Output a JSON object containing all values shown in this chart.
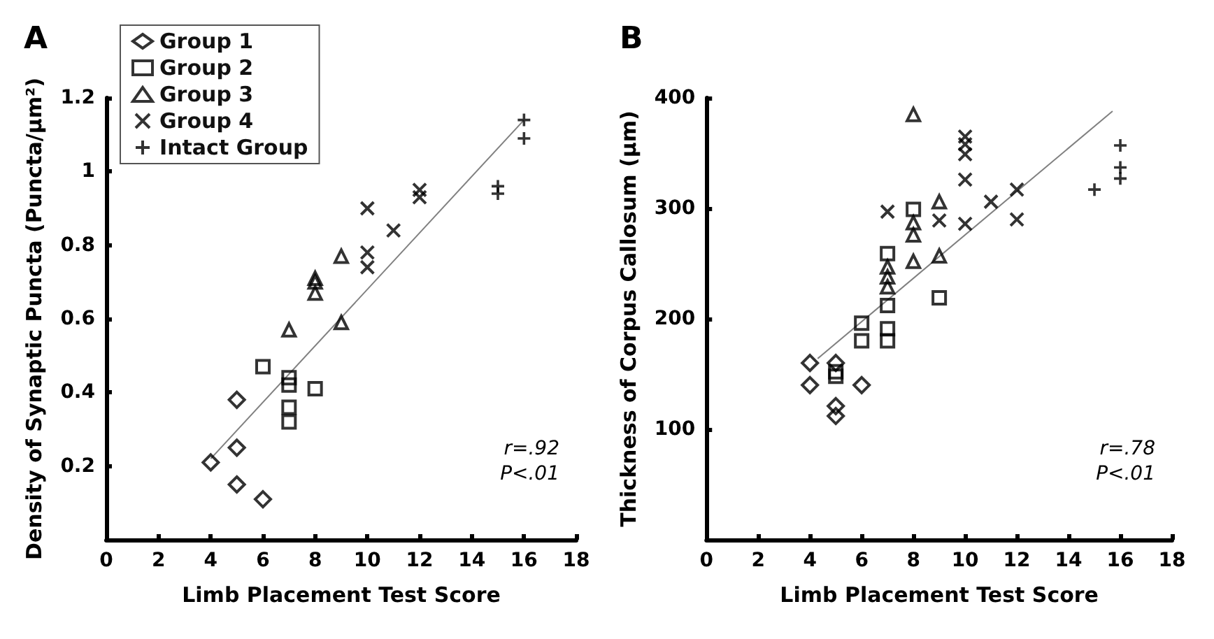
{
  "chart_data": [
    {
      "type": "scatter",
      "title": "A",
      "xlabel": "Limb Placement Test Score",
      "ylabel": "Density of Synaptic Puncta (Puncta/µm²)",
      "xlim": [
        0,
        18
      ],
      "xticks": [
        0,
        2,
        4,
        6,
        8,
        10,
        12,
        14,
        16,
        18
      ],
      "ylim": [
        0,
        1.2
      ],
      "yticks": [
        0.2,
        0.4,
        0.6,
        0.8,
        1,
        1.2
      ],
      "grid": false,
      "legend": "top left",
      "annotations": [
        "r=.92",
        "P<.01"
      ],
      "series": [
        {
          "name": "Group 1",
          "color": "#000000",
          "marker": "diamond",
          "x": [
            4,
            5,
            5,
            5,
            6
          ],
          "values": [
            0.21,
            0.38,
            0.25,
            0.15,
            0.11
          ]
        },
        {
          "name": "Group 2",
          "color": "#000000",
          "marker": "square",
          "x": [
            6,
            7,
            7,
            7,
            7,
            8
          ],
          "values": [
            0.47,
            0.44,
            0.42,
            0.36,
            0.32,
            0.41
          ]
        },
        {
          "name": "Group 3",
          "color": "#000000",
          "marker": "triangle",
          "x": [
            7,
            8,
            8,
            8,
            9,
            9
          ],
          "values": [
            0.57,
            0.71,
            0.7,
            0.67,
            0.77,
            0.59
          ]
        },
        {
          "name": "Group 4",
          "color": "#000000",
          "marker": "cross",
          "x": [
            10,
            10,
            10,
            11,
            12,
            12
          ],
          "values": [
            0.9,
            0.78,
            0.74,
            0.84,
            0.95,
            0.93
          ]
        },
        {
          "name": "Intact Group",
          "color": "#000000",
          "marker": "plus",
          "x": [
            16,
            16,
            15,
            15
          ],
          "values": [
            1.14,
            1.09,
            0.96,
            0.94
          ]
        },
        {
          "type": "line",
          "color": "#808080",
          "marker": "none",
          "x": [
            4,
            16
          ],
          "values": [
            0.22,
            1.14
          ]
        }
      ]
    },
    {
      "type": "scatter",
      "title": "B",
      "xlabel": "Limb Placement Test Score",
      "ylabel": "Thickness of Corpus Callosum (µm)",
      "xlim": [
        0,
        18
      ],
      "xticks": [
        0,
        2,
        4,
        6,
        8,
        10,
        12,
        14,
        16,
        18
      ],
      "ylim": [
        0,
        400
      ],
      "yticks": [
        100,
        200,
        300,
        400
      ],
      "grid": false,
      "legend": false,
      "annotations": [
        "r=.78",
        "P<.01"
      ],
      "series": [
        {
          "color": "#000000",
          "marker": "diamond",
          "x": [
            4,
            4,
            5,
            5,
            5,
            6
          ],
          "values": [
            160,
            140,
            160,
            121,
            112,
            140
          ]
        },
        {
          "color": "#000000",
          "marker": "square",
          "x": [
            5,
            5,
            6,
            6,
            7,
            7,
            7,
            7,
            8,
            9
          ],
          "values": [
            152,
            148,
            196,
            180,
            259,
            212,
            191,
            180,
            299,
            219
          ]
        },
        {
          "color": "#000000",
          "marker": "triangle",
          "x": [
            8,
            7,
            7,
            7,
            8,
            8,
            8,
            9,
            9
          ],
          "values": [
            385,
            247,
            238,
            229,
            287,
            276,
            252,
            306,
            257
          ]
        },
        {
          "color": "#000000",
          "marker": "cross",
          "x": [
            7,
            9,
            10,
            10,
            10,
            10,
            10,
            11,
            12,
            12
          ],
          "values": [
            297,
            289,
            365,
            358,
            349,
            326,
            286,
            306,
            317,
            290
          ]
        },
        {
          "color": "#000000",
          "marker": "plus",
          "x": [
            15,
            16,
            16,
            16
          ],
          "values": [
            317,
            357,
            337,
            327
          ]
        },
        {
          "type": "line",
          "color": "#808080",
          "marker": "none",
          "x": [
            4.3,
            15.7
          ],
          "values": [
            164,
            388
          ]
        }
      ]
    }
  ]
}
